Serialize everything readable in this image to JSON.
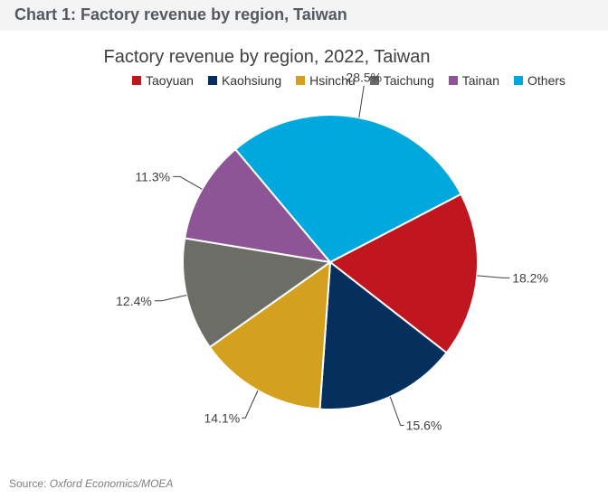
{
  "header": {
    "title": "Chart 1: Factory revenue by region, Taiwan"
  },
  "footer": {
    "source_label": "Source:",
    "source_value": "Oxford Economics/MOEA"
  },
  "chart_data": {
    "type": "pie",
    "title": "Factory revenue by region, 2022, Taiwan",
    "legend_position": "top",
    "categories": [
      "Taoyuan",
      "Kaohsiung",
      "Hsinchu",
      "Taichung",
      "Tainan",
      "Others"
    ],
    "values": [
      18.2,
      15.6,
      14.1,
      12.4,
      11.3,
      28.5
    ],
    "labels": [
      "18.2%",
      "15.6%",
      "14.1%",
      "12.4%",
      "11.3%",
      "28.5%"
    ],
    "colors": [
      "#c0161f",
      "#05305e",
      "#d3a020",
      "#6d6d68",
      "#8e5596",
      "#00a8de"
    ]
  }
}
